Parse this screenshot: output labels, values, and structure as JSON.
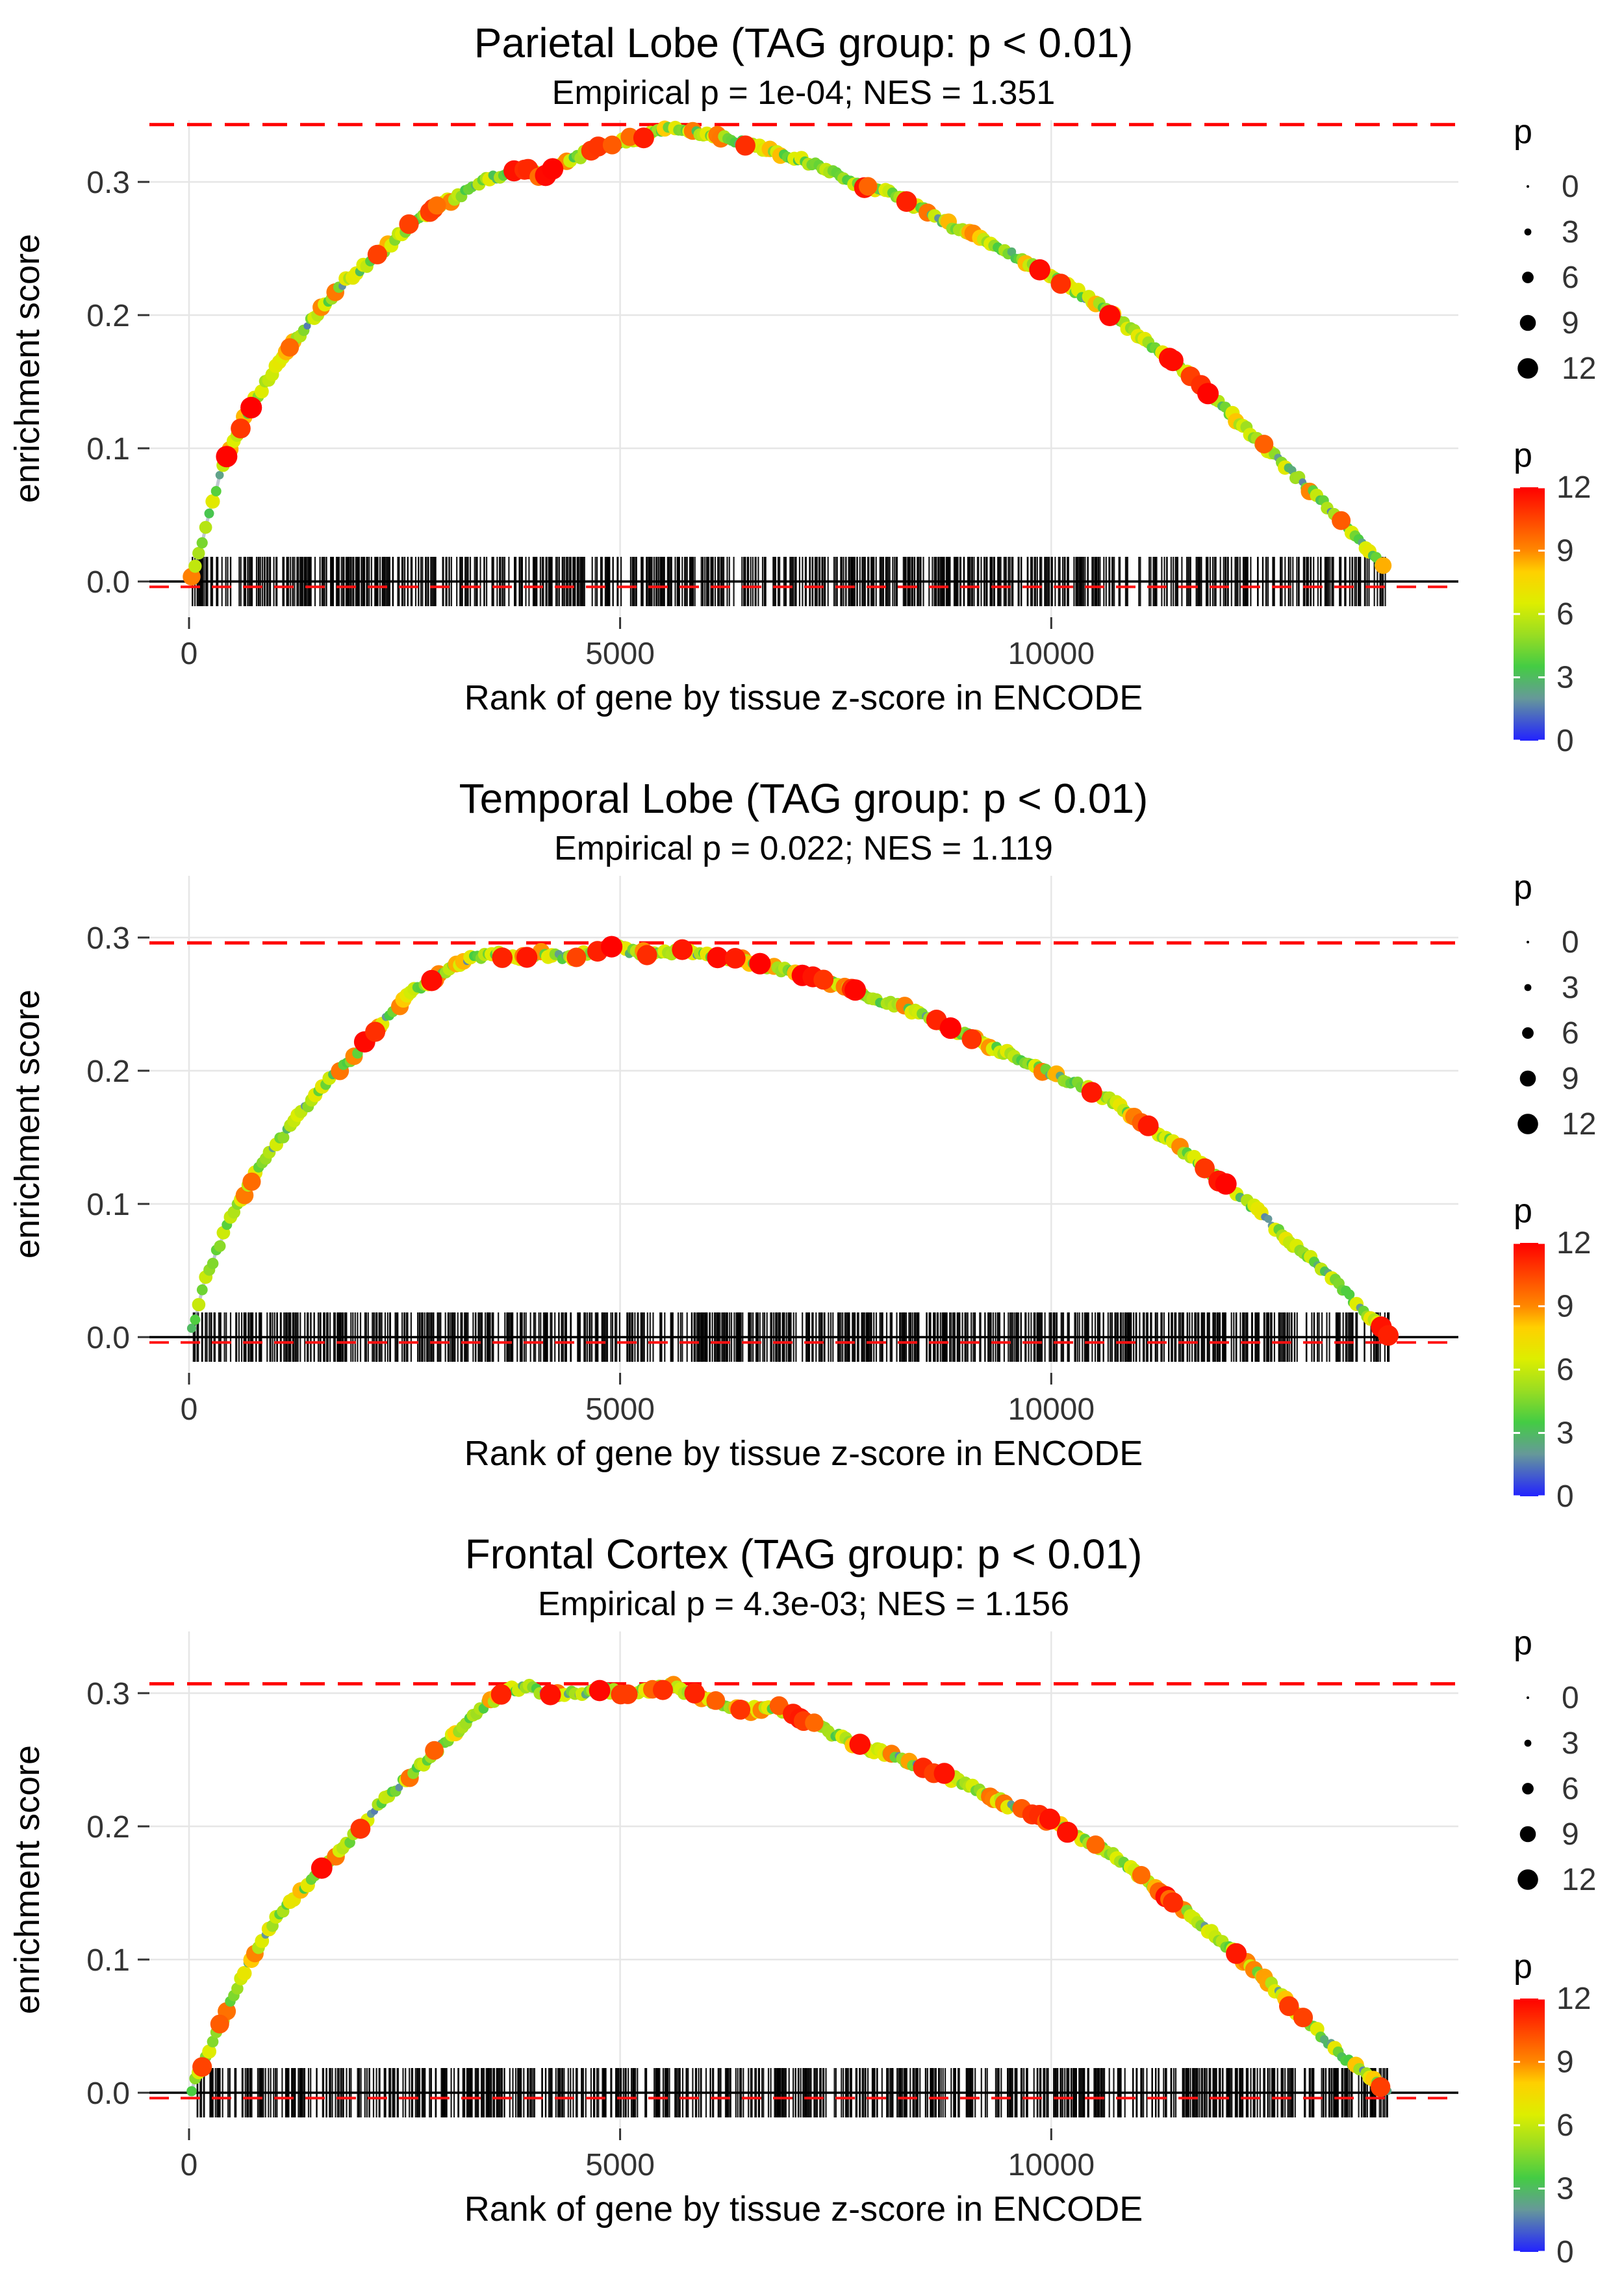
{
  "figure": {
    "background": "#FFFFFF"
  },
  "legend_size": {
    "title": "p",
    "values": [
      "0",
      "3",
      "6",
      "9",
      "12"
    ]
  },
  "legend_color": {
    "title": "p",
    "ticks": [
      "12",
      "9",
      "6",
      "3",
      "0"
    ],
    "min": 0,
    "max": 12
  },
  "palette": {
    "max_line": "#FF0000",
    "min_line": "#FF1111",
    "grid": "#E6E6E6",
    "rug": "#000000",
    "zero_line": "#000000",
    "tick_text": "#333333",
    "gradient": [
      {
        "v": 0,
        "c": "#2222FF"
      },
      {
        "v": 2,
        "c": "#669999"
      },
      {
        "v": 3.5,
        "c": "#44CC44"
      },
      {
        "v": 5,
        "c": "#99DD22"
      },
      {
        "v": 6.5,
        "c": "#DDEE00"
      },
      {
        "v": 8,
        "c": "#FFD000"
      },
      {
        "v": 9,
        "c": "#FF8800"
      },
      {
        "v": 10.5,
        "c": "#FF4400"
      },
      {
        "v": 12,
        "c": "#FF0000"
      }
    ]
  },
  "chart_data": [
    {
      "type": "line",
      "title": "Parietal Lobe (TAG group: p < 0.01)",
      "subtitle": "Empirical p = 1e-04; NES = 1.351",
      "xlabel": "Rank of gene by tissue z-score in ENCODE",
      "ylabel": "enrichment score",
      "xticks": [
        0,
        5000,
        10000
      ],
      "yticks": [
        0.0,
        0.1,
        0.2,
        0.3
      ],
      "xlim": [
        -700,
        14600
      ],
      "ylim": [
        -0.03,
        0.37
      ],
      "max_es_line": 0.343,
      "min_es_line": -0.004,
      "rug_range": [
        30,
        13880
      ],
      "curve": [
        [
          30,
          0.005
        ],
        [
          150,
          0.03
        ],
        [
          400,
          0.09
        ],
        [
          700,
          0.13
        ],
        [
          1000,
          0.16
        ],
        [
          1400,
          0.195
        ],
        [
          1800,
          0.225
        ],
        [
          2200,
          0.245
        ],
        [
          2600,
          0.27
        ],
        [
          3000,
          0.285
        ],
        [
          3400,
          0.3
        ],
        [
          3800,
          0.31
        ],
        [
          4100,
          0.305
        ],
        [
          4400,
          0.315
        ],
        [
          4700,
          0.325
        ],
        [
          5000,
          0.33
        ],
        [
          5300,
          0.335
        ],
        [
          5600,
          0.34
        ],
        [
          5900,
          0.337
        ],
        [
          6200,
          0.333
        ],
        [
          6500,
          0.328
        ],
        [
          6900,
          0.32
        ],
        [
          7300,
          0.312
        ],
        [
          7700,
          0.3
        ],
        [
          8100,
          0.292
        ],
        [
          8500,
          0.28
        ],
        [
          8900,
          0.265
        ],
        [
          9300,
          0.255
        ],
        [
          9700,
          0.24
        ],
        [
          10100,
          0.225
        ],
        [
          10500,
          0.21
        ],
        [
          10900,
          0.19
        ],
        [
          11300,
          0.17
        ],
        [
          11700,
          0.15
        ],
        [
          12100,
          0.125
        ],
        [
          12500,
          0.1
        ],
        [
          12900,
          0.075
        ],
        [
          13300,
          0.05
        ],
        [
          13600,
          0.03
        ],
        [
          13850,
          0.01
        ]
      ]
    },
    {
      "type": "line",
      "title": "Temporal Lobe (TAG group: p < 0.01)",
      "subtitle": "Empirical p = 0.022; NES = 1.119",
      "xlabel": "Rank of gene by tissue z-score in ENCODE",
      "ylabel": "enrichment score",
      "xticks": [
        0,
        5000,
        10000
      ],
      "yticks": [
        0.0,
        0.1,
        0.2,
        0.3
      ],
      "xlim": [
        -700,
        14600
      ],
      "ylim": [
        -0.03,
        0.33
      ],
      "max_es_line": 0.296,
      "min_es_line": -0.004,
      "rug_range": [
        30,
        13950
      ],
      "curve": [
        [
          30,
          0.005
        ],
        [
          200,
          0.045
        ],
        [
          450,
          0.085
        ],
        [
          700,
          0.115
        ],
        [
          950,
          0.14
        ],
        [
          1200,
          0.16
        ],
        [
          1500,
          0.185
        ],
        [
          1900,
          0.21
        ],
        [
          2300,
          0.24
        ],
        [
          2600,
          0.26
        ],
        [
          2900,
          0.272
        ],
        [
          3200,
          0.283
        ],
        [
          3500,
          0.288
        ],
        [
          3800,
          0.285
        ],
        [
          4100,
          0.288
        ],
        [
          4400,
          0.285
        ],
        [
          4700,
          0.29
        ],
        [
          4900,
          0.295
        ],
        [
          5100,
          0.29
        ],
        [
          5400,
          0.287
        ],
        [
          5700,
          0.29
        ],
        [
          6000,
          0.286
        ],
        [
          6300,
          0.284
        ],
        [
          6600,
          0.28
        ],
        [
          6900,
          0.276
        ],
        [
          7200,
          0.27
        ],
        [
          7600,
          0.263
        ],
        [
          8000,
          0.253
        ],
        [
          8400,
          0.245
        ],
        [
          8800,
          0.233
        ],
        [
          9200,
          0.222
        ],
        [
          9600,
          0.21
        ],
        [
          10000,
          0.198
        ],
        [
          10400,
          0.188
        ],
        [
          10800,
          0.173
        ],
        [
          11200,
          0.155
        ],
        [
          11600,
          0.137
        ],
        [
          12000,
          0.115
        ],
        [
          12400,
          0.095
        ],
        [
          12800,
          0.07
        ],
        [
          13200,
          0.048
        ],
        [
          13500,
          0.028
        ],
        [
          13800,
          0.008
        ],
        [
          13950,
          0.0
        ]
      ]
    },
    {
      "type": "line",
      "title": "Frontal Cortex (TAG group: p < 0.01)",
      "subtitle": "Empirical p = 4.3e-03; NES = 1.156",
      "xlabel": "Rank of gene by tissue z-score in ENCODE",
      "ylabel": "enrichment score",
      "xticks": [
        0,
        5000,
        10000
      ],
      "yticks": [
        0.0,
        0.1,
        0.2,
        0.3
      ],
      "xlim": [
        -700,
        14600
      ],
      "ylim": [
        -0.03,
        0.34
      ],
      "max_es_line": 0.307,
      "min_es_line": -0.004,
      "rug_range": [
        30,
        13900
      ],
      "curve": [
        [
          30,
          0.003
        ],
        [
          250,
          0.035
        ],
        [
          500,
          0.07
        ],
        [
          750,
          0.105
        ],
        [
          1000,
          0.13
        ],
        [
          1250,
          0.15
        ],
        [
          1550,
          0.168
        ],
        [
          1850,
          0.188
        ],
        [
          2150,
          0.212
        ],
        [
          2450,
          0.232
        ],
        [
          2700,
          0.246
        ],
        [
          2950,
          0.262
        ],
        [
          3200,
          0.276
        ],
        [
          3450,
          0.292
        ],
        [
          3700,
          0.302
        ],
        [
          3900,
          0.305
        ],
        [
          4200,
          0.299
        ],
        [
          4500,
          0.3
        ],
        [
          4800,
          0.303
        ],
        [
          5100,
          0.3
        ],
        [
          5400,
          0.303
        ],
        [
          5600,
          0.305
        ],
        [
          5900,
          0.297
        ],
        [
          6200,
          0.292
        ],
        [
          6500,
          0.287
        ],
        [
          6800,
          0.29
        ],
        [
          7100,
          0.281
        ],
        [
          7400,
          0.272
        ],
        [
          7700,
          0.262
        ],
        [
          8000,
          0.256
        ],
        [
          8300,
          0.25
        ],
        [
          8600,
          0.241
        ],
        [
          8900,
          0.235
        ],
        [
          9200,
          0.226
        ],
        [
          9500,
          0.216
        ],
        [
          9800,
          0.21
        ],
        [
          10100,
          0.2
        ],
        [
          10400,
          0.19
        ],
        [
          10700,
          0.179
        ],
        [
          11000,
          0.165
        ],
        [
          11300,
          0.149
        ],
        [
          11600,
          0.134
        ],
        [
          11900,
          0.118
        ],
        [
          12200,
          0.1
        ],
        [
          12500,
          0.084
        ],
        [
          12800,
          0.064
        ],
        [
          13100,
          0.045
        ],
        [
          13400,
          0.026
        ],
        [
          13700,
          0.012
        ],
        [
          13900,
          0.002
        ]
      ]
    }
  ]
}
